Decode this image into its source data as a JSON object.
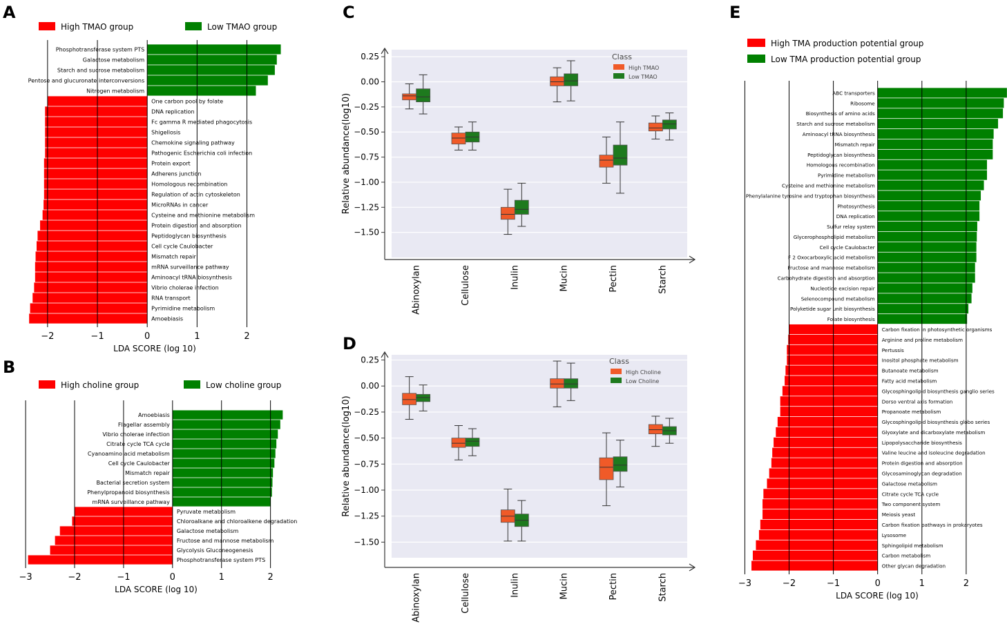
{
  "panel_letters": {
    "A": "A",
    "B": "B",
    "C": "C",
    "D": "D",
    "E": "E"
  },
  "colors": {
    "red": "#ff0000",
    "green": "#008000",
    "box_orange": "#f05a28",
    "box_green": "#1e7a1e",
    "plot_bg": "#e9e9f3",
    "axis": "#333333"
  },
  "chart_data": [
    {
      "id": "A",
      "type": "bar",
      "orientation": "horizontal",
      "title": "",
      "xlabel": "LDA SCORE (log 10)",
      "xlim": [
        -2.4,
        2.7
      ],
      "xticks": [
        -2,
        -1,
        0,
        1,
        2
      ],
      "xtick_labels": [
        "−2",
        "−1",
        "0",
        "1",
        "2"
      ],
      "legend": [
        {
          "name": "High TMAO group",
          "color": "#ff0000"
        },
        {
          "name": "Low TMAO group",
          "color": "#008000"
        }
      ],
      "categories": [
        "Phosphotransferase system  PTS",
        "Galactose metabolism",
        "Starch and sucrose metabolism",
        "Pentose and glucuronate interconversions",
        "Nitrogen metabolism",
        "One carbon pool by folate",
        "DNA replication",
        "Fc gamma R mediated phagocytosis",
        "Shigellosis",
        "Chemokine signaling pathway",
        "Pathogenic Escherichia coli infection",
        "Protein export",
        "Adherens junction",
        "Homologous recombination",
        "Regulation of actin cytoskeleton",
        "MicroRNAs in cancer",
        "Cysteine and methionine metabolism",
        "Protein digestion and absorption",
        "Peptidoglycan biosynthesis",
        "Cell cycle    Caulobacter",
        "Mismatch repair",
        "mRNA surveillance pathway",
        "Aminoacyl tRNA biosynthesis",
        "Vibrio cholerae infection",
        "RNA transport",
        "Pyrimidine metabolism",
        "Amoebiasis"
      ],
      "values": [
        2.68,
        2.6,
        2.56,
        2.42,
        2.18,
        -2.0,
        -2.05,
        -2.05,
        -2.05,
        -2.05,
        -2.05,
        -2.07,
        -2.07,
        -2.07,
        -2.07,
        -2.08,
        -2.1,
        -2.15,
        -2.2,
        -2.22,
        -2.24,
        -2.25,
        -2.25,
        -2.27,
        -2.3,
        -2.35,
        -2.37
      ]
    },
    {
      "id": "B",
      "type": "bar",
      "orientation": "horizontal",
      "title": "",
      "xlabel": "LDA SCORE (log 10)",
      "xlim": [
        -3.1,
        2.4
      ],
      "xticks": [
        -3,
        -2,
        -1,
        0,
        1,
        2
      ],
      "xtick_labels": [
        "−3",
        "−2",
        "−1",
        "0",
        "1",
        "2"
      ],
      "legend": [
        {
          "name": "High choline group",
          "color": "#ff0000"
        },
        {
          "name": "Low choline group",
          "color": "#008000"
        }
      ],
      "categories": [
        "Amoebiasis",
        "Flagellar assembly",
        "Vibrio cholerae infection",
        "Citrate cycle  TCA cycle",
        "Cyanoamino acid metabolism",
        "Cell cycle    Caulobacter",
        "Mismatch repair",
        "Bacterial secretion system",
        "Phenylpropanoid biosynthesis",
        "mRNA surveillance pathway",
        "Pyruvate metabolism",
        "Chloroalkane and chloroalkene degradation",
        "Galactose metabolism",
        "Fructose and mannose metabolism",
        "Glycolysis    Gluconeogenesis",
        "Phosphotransferase system  PTS"
      ],
      "values": [
        2.25,
        2.2,
        2.15,
        2.12,
        2.1,
        2.08,
        2.05,
        2.04,
        2.03,
        2.0,
        -2.0,
        -2.05,
        -2.3,
        -2.4,
        -2.5,
        -2.95
      ]
    },
    {
      "id": "C",
      "type": "box",
      "title": "",
      "xlabel": "",
      "ylabel": "Relative abundance(log10)",
      "ylim": [
        -1.75,
        0.32
      ],
      "yticks": [
        0.25,
        0.0,
        -0.25,
        -0.5,
        -0.75,
        -1.0,
        -1.25,
        -1.5
      ],
      "ytick_labels": [
        "0.25",
        "0.00",
        "−0.25",
        "−0.50",
        "−0.75",
        "−1.00",
        "−1.25",
        "−1.50"
      ],
      "categories": [
        "Abinoxylan",
        "Cellulose",
        "Inulin",
        "Mucin",
        "Pectin",
        "Starch"
      ],
      "legend_title": "Class",
      "series": [
        {
          "name": "High TMAO",
          "color": "#f05a28",
          "boxes": [
            [
              -0.27,
              -0.18,
              -0.14,
              -0.12,
              -0.02
            ],
            [
              -0.68,
              -0.62,
              -0.56,
              -0.51,
              -0.45
            ],
            [
              -1.52,
              -1.37,
              -1.32,
              -1.25,
              -1.07
            ],
            [
              -0.2,
              -0.04,
              0.0,
              0.05,
              0.14
            ],
            [
              -1.01,
              -0.85,
              -0.78,
              -0.73,
              -0.55
            ],
            [
              -0.57,
              -0.49,
              -0.46,
              -0.41,
              -0.34
            ]
          ]
        },
        {
          "name": "Low TMAO",
          "color": "#1e7a1e",
          "boxes": [
            [
              -0.32,
              -0.2,
              -0.15,
              -0.07,
              0.07
            ],
            [
              -0.68,
              -0.6,
              -0.55,
              -0.5,
              -0.4
            ],
            [
              -1.44,
              -1.32,
              -1.27,
              -1.18,
              -1.01
            ],
            [
              -0.19,
              -0.04,
              0.01,
              0.08,
              0.21
            ],
            [
              -1.11,
              -0.83,
              -0.76,
              -0.63,
              -0.4
            ],
            [
              -0.58,
              -0.47,
              -0.42,
              -0.38,
              -0.31
            ]
          ]
        }
      ]
    },
    {
      "id": "D",
      "type": "box",
      "title": "",
      "xlabel": "",
      "ylabel": "Relative abundance(log10)",
      "ylim": [
        -1.65,
        0.3
      ],
      "yticks": [
        0.25,
        0.0,
        -0.25,
        -0.5,
        -0.75,
        -1.0,
        -1.25,
        -1.5
      ],
      "ytick_labels": [
        "0.25",
        "0.00",
        "−0.25",
        "−0.50",
        "−0.75",
        "−1.00",
        "−1.25",
        "−1.50"
      ],
      "categories": [
        "Abinoxylan",
        "Cellulose",
        "Inulin",
        "Mucin",
        "Pectin",
        "Starch"
      ],
      "legend_title": "Class",
      "series": [
        {
          "name": "High Choline",
          "color": "#f05a28",
          "boxes": [
            [
              -0.32,
              -0.18,
              -0.13,
              -0.07,
              0.09
            ],
            [
              -0.71,
              -0.59,
              -0.55,
              -0.5,
              -0.38
            ],
            [
              -1.49,
              -1.31,
              -1.25,
              -1.19,
              -0.99
            ],
            [
              -0.2,
              -0.02,
              0.02,
              0.07,
              0.24
            ],
            [
              -1.15,
              -0.9,
              -0.78,
              -0.69,
              -0.45
            ],
            [
              -0.58,
              -0.46,
              -0.42,
              -0.37,
              -0.29
            ]
          ]
        },
        {
          "name": "Low Choline",
          "color": "#1e7a1e",
          "boxes": [
            [
              -0.24,
              -0.15,
              -0.11,
              -0.08,
              0.01
            ],
            [
              -0.67,
              -0.58,
              -0.53,
              -0.5,
              -0.41
            ],
            [
              -1.49,
              -1.35,
              -1.29,
              -1.23,
              -1.1
            ],
            [
              -0.14,
              -0.02,
              0.02,
              0.07,
              0.22
            ],
            [
              -0.97,
              -0.82,
              -0.76,
              -0.68,
              -0.52
            ],
            [
              -0.55,
              -0.47,
              -0.43,
              -0.39,
              -0.31
            ]
          ]
        }
      ]
    },
    {
      "id": "E",
      "type": "bar",
      "orientation": "horizontal",
      "title": "",
      "xlabel": "LDA SCORE (log 10)",
      "xlim": [
        -3.1,
        3.0
      ],
      "xticks": [
        -3,
        -2,
        -1,
        0,
        1,
        2,
        3
      ],
      "xtick_labels": [
        "−3",
        "−2",
        "−1",
        "0",
        "1",
        "2",
        "3"
      ],
      "legend": [
        {
          "name": "High TMA production potential group",
          "color": "#ff0000"
        },
        {
          "name": "Low TMA production potential group",
          "color": "#008000"
        }
      ],
      "categories": [
        "ABC transporters",
        "Ribosome",
        "Biosynthesis of amino acids",
        "Starch and sucrose metabolism",
        "Aminoacyl tRNA biosynthesis",
        "Mismatch repair",
        "Peptidoglycan biosynthesis",
        "Homologous recombination",
        "Pyrimidine metabolism",
        "Cysteine and methionine metabolism",
        "Phenylalanine   tyrosine and tryptophan biosynthesis",
        "Photosynthesis",
        "DNA replication",
        "Sulfur relay system",
        "Glycerophospholipid metabolism",
        "Cell cycle    Caulobacter",
        "F 2 Oxocarboxylic acid metabolism",
        "Fructose and mannose metabolism",
        "Carbohydrate digestion and absorption",
        "Nucleotide excision repair",
        "Selenocompound metabolism",
        "Polyketide sugar unit biosynthesis",
        "Folate biosynthesis",
        "Carbon fixation in photosynthetic organisms",
        "Arginine and proline metabolism",
        "Pertussis",
        "Inositol phosphate metabolism",
        "Butanoate metabolism",
        "Fatty acid metabolism",
        "Glycosphingolipid biosynthesis     ganglio series",
        "Dorso ventral axis formation",
        "Propanoate metabolism",
        "Glycosphingolipid biosynthesis     globo series",
        "Glyoxylate and dicarboxylate metabolism",
        "Lipopolysaccharide biosynthesis",
        "Valine    leucine and isoleucine degradation",
        "Protein digestion and absorption",
        "Glycosaminoglycan degradation",
        "Galactose metabolism",
        "Citrate cycle   TCA cycle",
        "Two component system",
        "Meiosis      yeast",
        "Carbon fixation pathways in prokaryotes",
        "Lysosome",
        "Sphingolipid metabolism",
        "Carbon metabolism",
        "Other glycan degradation"
      ],
      "values": [
        2.92,
        2.85,
        2.83,
        2.72,
        2.62,
        2.6,
        2.6,
        2.47,
        2.47,
        2.4,
        2.33,
        2.3,
        2.3,
        2.25,
        2.24,
        2.23,
        2.23,
        2.2,
        2.2,
        2.14,
        2.12,
        2.05,
        2.02,
        -2.0,
        -2.02,
        -2.05,
        -2.05,
        -2.08,
        -2.1,
        -2.15,
        -2.2,
        -2.2,
        -2.26,
        -2.3,
        -2.35,
        -2.38,
        -2.4,
        -2.45,
        -2.5,
        -2.58,
        -2.6,
        -2.6,
        -2.65,
        -2.68,
        -2.75,
        -2.82,
        -2.85
      ]
    }
  ]
}
